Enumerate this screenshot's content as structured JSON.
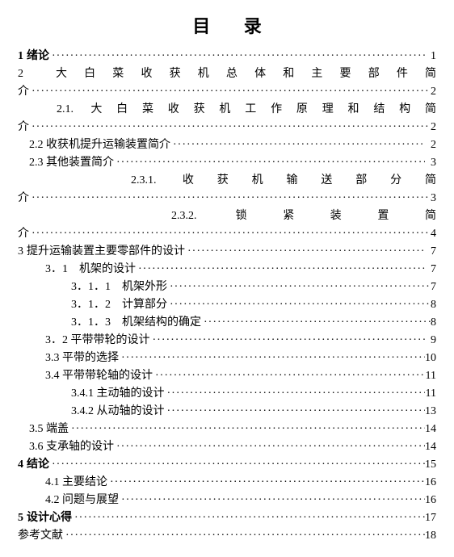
{
  "title": "目 录",
  "entries": [
    {
      "type": "line",
      "num": "1",
      "text": "绪论",
      "page": "1",
      "bold": true,
      "indent": 0
    },
    {
      "type": "justified",
      "num": "2",
      "text": "大白菜收获机总体和主要部件简",
      "bold": false,
      "indent": 0
    },
    {
      "type": "cont",
      "text": "介",
      "page": "2",
      "indent": 0
    },
    {
      "type": "justified",
      "num": "",
      "text": "2.1. 大白菜收获机工作原理和结构简",
      "indent": 2
    },
    {
      "type": "cont",
      "text": "介",
      "page": "2",
      "indent": 0
    },
    {
      "type": "line",
      "num": "",
      "text": "2.2 收获机提升运输装置简介",
      "page": "2",
      "indent": 1
    },
    {
      "type": "line",
      "num": "",
      "text": "2.3 其他装置简介",
      "page": "3",
      "indent": 1
    },
    {
      "type": "justified",
      "num": "",
      "text": "2.3.1. 收获机输送部分简",
      "indent": 4
    },
    {
      "type": "cont",
      "text": "介",
      "page": "3",
      "indent": 0
    },
    {
      "type": "justified",
      "num": "",
      "text": "2.3.2. 锁紧装置简",
      "indent": 4,
      "center": true
    },
    {
      "type": "cont",
      "text": "介",
      "page": "4",
      "indent": 0
    },
    {
      "type": "line",
      "num": "3",
      "text": "提升运输装置主要零部件的设计",
      "page": "7",
      "indent": 0
    },
    {
      "type": "line",
      "num": "",
      "text": "3．1　机架的设计",
      "page": "7",
      "indent": 2
    },
    {
      "type": "line",
      "num": "",
      "text": "3．1．1　机架外形",
      "page": "7",
      "indent": 3,
      "tight": true
    },
    {
      "type": "line",
      "num": "",
      "text": "3．1．2　计算部分",
      "page": "8",
      "indent": 3,
      "tight": true
    },
    {
      "type": "line",
      "num": "",
      "text": "3．1．3　机架结构的确定",
      "page": "8",
      "indent": 3,
      "tight": true
    },
    {
      "type": "line",
      "num": "",
      "text": "3．2 平带带轮的设计",
      "page": "9",
      "indent": 2
    },
    {
      "type": "line",
      "num": "",
      "text": "3.3 平带的选择",
      "page": "10",
      "indent": 2
    },
    {
      "type": "line",
      "num": "",
      "text": "3.4 平带带轮轴的设计",
      "page": "11",
      "indent": 2
    },
    {
      "type": "line",
      "num": "",
      "text": "3.4.1 主动轴的设计",
      "page": "11",
      "indent": 3
    },
    {
      "type": "line",
      "num": "",
      "text": "3.4.2 从动轴的设计",
      "page": "13",
      "indent": 3
    },
    {
      "type": "line",
      "num": "",
      "text": "3.5 端盖",
      "page": "14",
      "indent": 1,
      "tight": true
    },
    {
      "type": "line",
      "num": "",
      "text": "3.6 支承轴的设计",
      "page": "14",
      "indent": 1,
      "tight": true
    },
    {
      "type": "line",
      "num": "4",
      "text": "结论",
      "page": "15",
      "bold": true,
      "indent": 0
    },
    {
      "type": "line",
      "num": "",
      "text": "4.1 主要结论",
      "page": "16",
      "indent": 2
    },
    {
      "type": "line",
      "num": "",
      "text": "4.2 问题与展望",
      "page": "16",
      "indent": 2
    },
    {
      "type": "line",
      "num": "5",
      "text": "设计心得",
      "page": "17",
      "bold": true,
      "indent": 0
    },
    {
      "type": "line",
      "num": "",
      "text": "参考文献",
      "page": "18",
      "indent": 0
    }
  ]
}
